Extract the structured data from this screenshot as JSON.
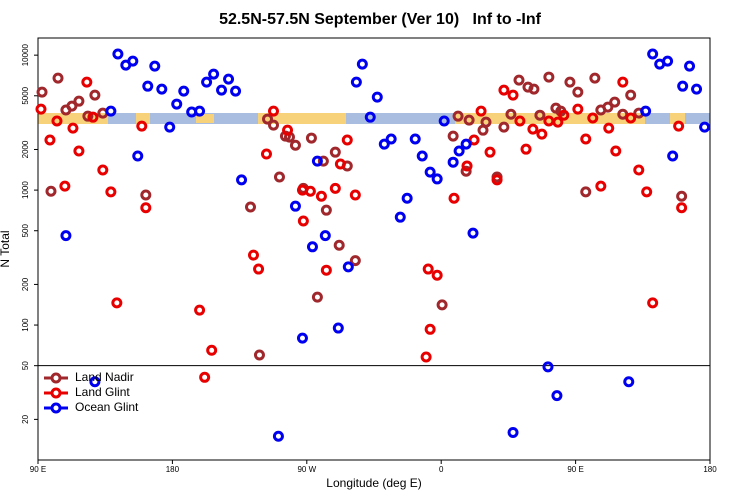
{
  "chart_data": {
    "type": "scatter",
    "title": "52.5N-57.5N September (Ver 10)   Inf to -Inf",
    "x_label": "Longitude (deg E)",
    "y_label": "N Total",
    "log_y": true,
    "xlim": [
      90,
      540
    ],
    "ylim": [
      10,
      13400
    ],
    "xticks": [
      {
        "value": 90,
        "label": "90 E"
      },
      {
        "value": 180,
        "label": "180"
      },
      {
        "value": 270,
        "label": "90 W"
      },
      {
        "value": 360,
        "label": "0"
      },
      {
        "value": 450,
        "label": "90 E"
      },
      {
        "value": 540,
        "label": "180"
      }
    ],
    "yticks": [
      20,
      50,
      100,
      200,
      500,
      1000,
      2000,
      5000,
      10000
    ],
    "hline": 50,
    "legend": "lower left",
    "series": [
      {
        "name": "Land Nadir",
        "color": "#a0282c",
        "x": [
          92.7,
          98.7,
          103.4,
          108.7,
          112.7,
          117.4,
          123.4,
          128.1,
          133.4,
          162.2,
          232.3,
          238.3,
          243.7,
          247.7,
          251.7,
          255.7,
          258.4,
          262.4,
          267.7,
          273.1,
          277.1,
          281.1,
          283.1,
          289.1,
          291.7,
          297.1,
          302.5,
          360.6,
          368.0,
          371.3,
          376.7,
          378.7,
          388.0,
          390.0,
          397.4,
          402.0,
          406.7,
          412.1,
          418.1,
          422.1,
          426.1,
          432.1,
          436.8,
          440.1,
          446.2,
          451.5,
          456.8,
          462.9,
          466.9,
          471.6,
          476.2,
          481.6,
          486.9,
          492.3,
          521.0
        ],
        "values": [
          5320,
          980,
          6760,
          3920,
          4190,
          4560,
          3530,
          5060,
          3720,
          920,
          750,
          60,
          3360,
          3030,
          1250,
          2510,
          2470,
          2150,
          1030,
          2430,
          161,
          1640,
          710,
          1910,
          390,
          1510,
          300,
          141,
          2510,
          3530,
          1380,
          3300,
          2780,
          3190,
          1250,
          2930,
          3650,
          6530,
          5800,
          5600,
          3590,
          6880,
          4050,
          3850,
          6310,
          5320,
          970,
          6760,
          3920,
          4120,
          4490,
          3650,
          5060,
          3720,
          900
        ]
      },
      {
        "name": "Land Glint",
        "color": "#e80000",
        "x": [
          92.0,
          98.0,
          102.7,
          108.0,
          113.4,
          117.4,
          122.7,
          126.8,
          133.4,
          138.8,
          142.8,
          159.5,
          162.2,
          198.2,
          201.6,
          206.3,
          234.3,
          237.7,
          243.0,
          247.7,
          257.1,
          267.1,
          267.7,
          272.4,
          279.8,
          283.1,
          289.1,
          292.5,
          297.1,
          302.5,
          349.9,
          351.3,
          352.6,
          357.3,
          368.6,
          377.3,
          382.0,
          386.7,
          392.7,
          397.4,
          402.0,
          408.1,
          412.7,
          416.8,
          421.4,
          427.4,
          432.1,
          438.1,
          442.1,
          451.5,
          456.8,
          461.5,
          466.9,
          472.2,
          476.9,
          481.6,
          486.9,
          492.3,
          497.6,
          501.6,
          519.0,
          521.0
        ],
        "values": [
          3980,
          2350,
          3250,
          1070,
          2880,
          1950,
          6310,
          3470,
          1410,
          970,
          146,
          2980,
          740,
          129,
          41,
          65,
          330,
          260,
          1850,
          3850,
          2780,
          1000,
          590,
          980,
          900,
          255,
          1030,
          1560,
          2350,
          920,
          58,
          260,
          93,
          234,
          870,
          1510,
          2350,
          3850,
          1910,
          1190,
          5510,
          5060,
          3250,
          2010,
          2830,
          2600,
          3250,
          3190,
          3590,
          3980,
          2390,
          3420,
          1070,
          2880,
          1950,
          6310,
          3420,
          1410,
          970,
          146,
          2980,
          740
        ]
      },
      {
        "name": "Ocean Glint",
        "color": "#0000f0",
        "x": [
          108.7,
          128.1,
          138.8,
          143.5,
          148.8,
          153.5,
          156.8,
          163.5,
          168.2,
          172.9,
          178.2,
          182.9,
          187.6,
          192.9,
          198.2,
          202.9,
          207.6,
          212.9,
          217.6,
          222.3,
          226.3,
          251.0,
          262.4,
          267.1,
          273.8,
          277.1,
          282.4,
          291.1,
          297.8,
          303.2,
          307.2,
          312.5,
          317.2,
          321.9,
          326.5,
          332.6,
          337.2,
          342.6,
          347.3,
          352.6,
          357.3,
          362.0,
          368.0,
          372.0,
          376.7,
          381.3,
          408.1,
          431.5,
          437.5,
          485.6,
          496.9,
          501.6,
          506.3,
          511.6,
          515.0,
          521.7,
          526.3,
          531.0,
          536.4
        ],
        "values": [
          460,
          38,
          3850,
          10200,
          8430,
          9030,
          1790,
          5890,
          8290,
          5600,
          2930,
          4340,
          5410,
          3790,
          3850,
          6310,
          7230,
          5510,
          6640,
          5410,
          1190,
          15,
          760,
          80,
          380,
          1640,
          460,
          95,
          270,
          6310,
          8580,
          3470,
          4890,
          2190,
          2390,
          630,
          870,
          2390,
          1790,
          1360,
          1210,
          3250,
          1610,
          1950,
          2190,
          480,
          16,
          49,
          30,
          38,
          3850,
          10200,
          8580,
          9030,
          1790,
          5890,
          8290,
          5600,
          2930
        ]
      }
    ]
  }
}
